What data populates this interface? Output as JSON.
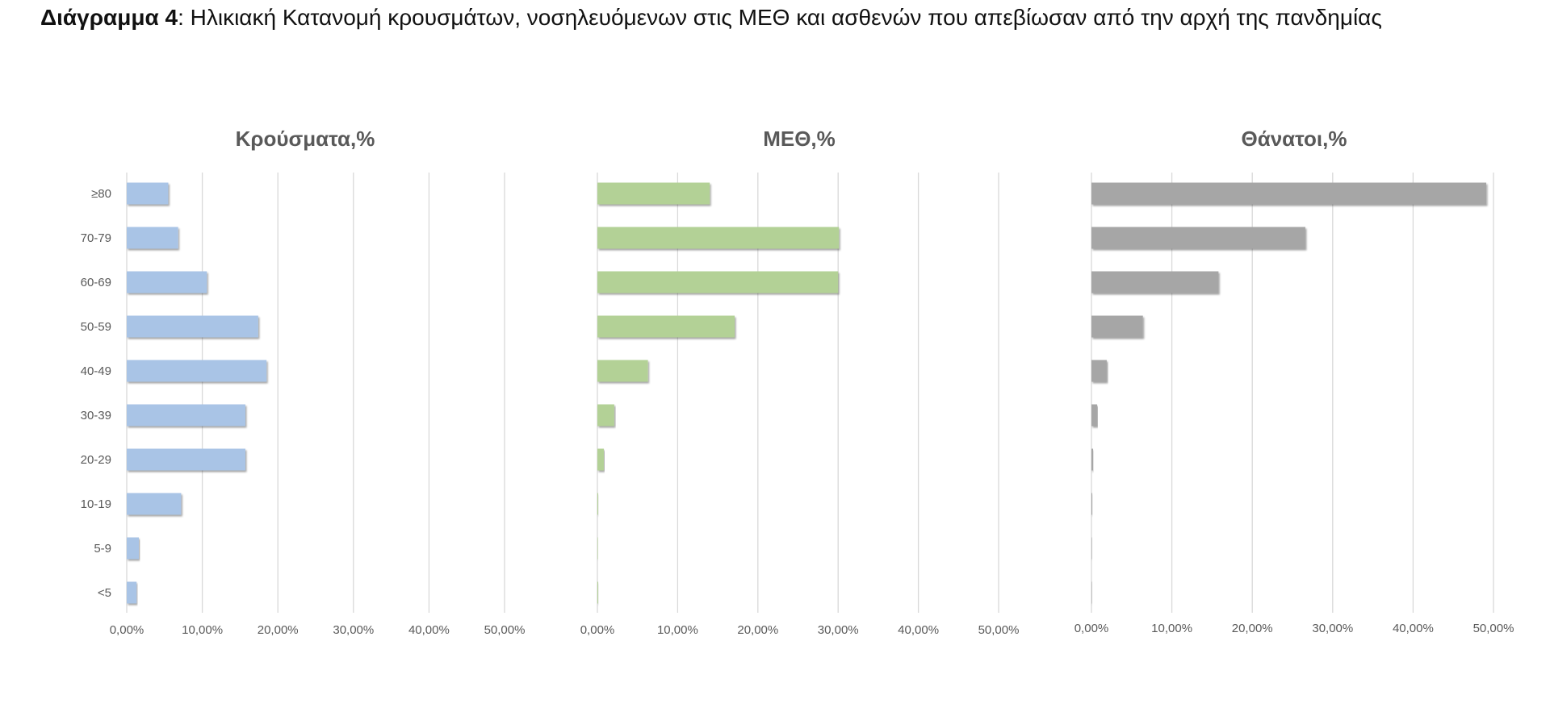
{
  "heading": {
    "bold": "Διάγραμμα 4",
    "rest": ": Ηλικιακή Κατανομή κρουσμάτων, νοσηλευόμενων στις ΜΕΘ και ασθενών που απεβίωσαν από την αρχή της πανδημίας"
  },
  "chart_data": [
    {
      "type": "bar",
      "orientation": "horizontal",
      "title": "Κρούσματα,%",
      "color": "#a9c4e6",
      "categories": [
        "≥80",
        "70-79",
        "60-69",
        "50-59",
        "40-49",
        "30-39",
        "20-29",
        "10-19",
        "5-9",
        "<5"
      ],
      "values": [
        5.5,
        6.8,
        10.6,
        17.4,
        18.5,
        15.7,
        15.7,
        7.2,
        1.6,
        1.3
      ],
      "xlim": [
        0,
        50
      ],
      "x_ticks": [
        "0,00%",
        "10,00%",
        "20,00%",
        "30,00%",
        "40,00%",
        "50,00%"
      ],
      "grid": true
    },
    {
      "type": "bar",
      "orientation": "horizontal",
      "title": "ΜΕΘ,%",
      "color": "#b3d196",
      "categories": [
        "≥80",
        "70-79",
        "60-69",
        "50-59",
        "40-49",
        "30-39",
        "20-29",
        "10-19",
        "5-9",
        "<5"
      ],
      "values": [
        14.0,
        30.1,
        30.0,
        17.1,
        6.3,
        2.1,
        0.8,
        0.1,
        0,
        0.1
      ],
      "xlim": [
        0,
        50
      ],
      "x_ticks": [
        "0,00%",
        "10,00%",
        "20,00%",
        "30,00%",
        "40,00%",
        "50,00%"
      ],
      "grid": true
    },
    {
      "type": "bar",
      "orientation": "horizontal",
      "title": "Θάνατοι,%",
      "color": "#a6a6a6",
      "categories": [
        "≥80",
        "70-79",
        "60-69",
        "50-59",
        "40-49",
        "30-39",
        "20-29",
        "10-19",
        "5-9",
        "<5"
      ],
      "values": [
        49.1,
        26.6,
        15.8,
        6.4,
        1.9,
        0.7,
        0.2,
        0.05,
        0,
        0
      ],
      "xlim": [
        0,
        50
      ],
      "x_ticks": [
        "0,00%",
        "10,00%",
        "20,00%",
        "30,00%",
        "40,00%",
        "50,00%"
      ],
      "grid": true
    }
  ]
}
